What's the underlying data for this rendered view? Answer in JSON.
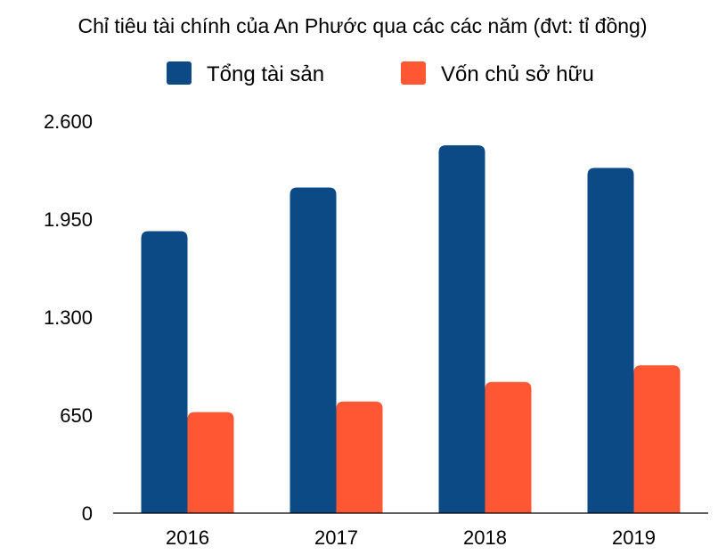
{
  "chart_data": {
    "type": "bar",
    "title": "Chỉ tiêu tài chính của An Phước qua các các năm (đvt: tỉ đồng)",
    "categories": [
      "2016",
      "2017",
      "2018",
      "2019"
    ],
    "series": [
      {
        "name": "Tổng tài sản",
        "color": "#0b4a85",
        "values": [
          1870,
          2160,
          2440,
          2290
        ]
      },
      {
        "name": "Vốn chủ sở hữu",
        "color": "#ff5634",
        "values": [
          670,
          740,
          870,
          980
        ]
      }
    ],
    "ylim": [
      0,
      2600
    ],
    "yticks": [
      0,
      650,
      1300,
      1950,
      2600
    ],
    "ytick_labels": [
      "0",
      "650",
      "1.300",
      "1.950",
      "2.600"
    ],
    "grid": false,
    "legend_position": "top-center"
  }
}
